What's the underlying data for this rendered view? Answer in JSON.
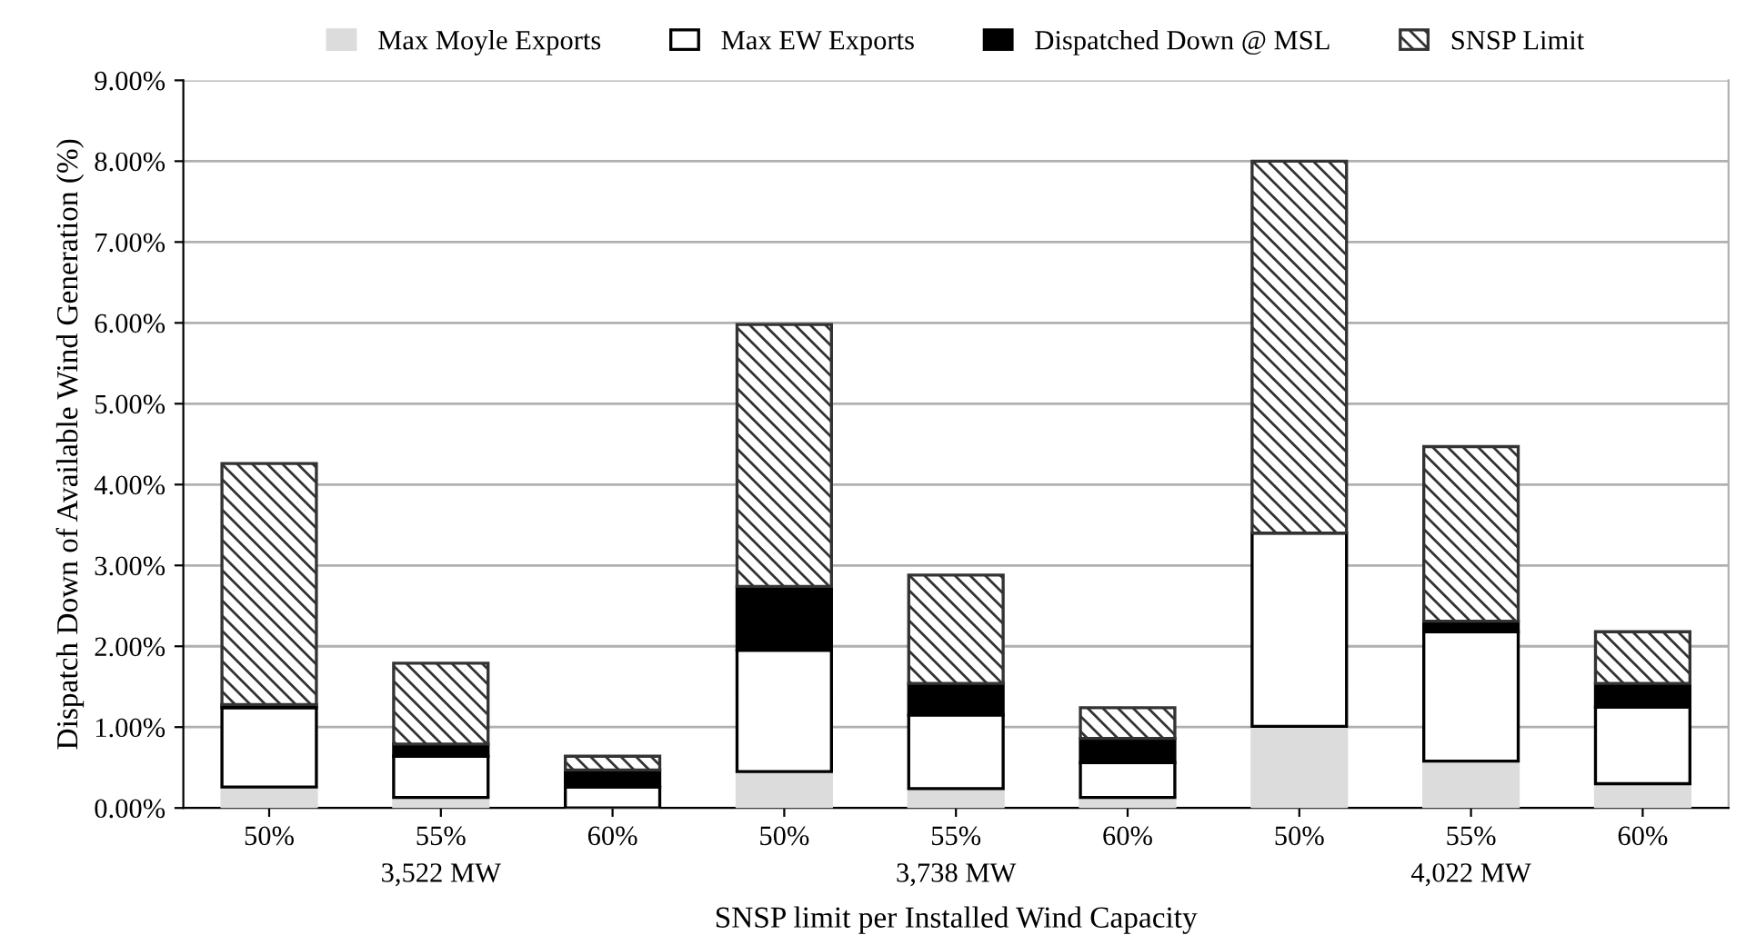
{
  "chart_data": {
    "type": "bar",
    "stacked": true,
    "xlabel": "SNSP limit per Installed Wind Capacity",
    "ylabel": "Dispatch Down of Available Wind Generation (%)",
    "categories": [
      "50%",
      "55%",
      "60%",
      "50%",
      "55%",
      "60%",
      "50%",
      "55%",
      "60%"
    ],
    "series": [
      {
        "name": "Max Moyle Exports",
        "color": "#dcdcdc",
        "values": [
          0.26,
          0.13,
          0,
          0.45,
          0.24,
          0.13,
          1.01,
          0.58,
          0.3
        ]
      },
      {
        "name": "Max EW Exports",
        "color": "#ffffff",
        "values": [
          0.98,
          0.51,
          0.26,
          1.5,
          0.91,
          0.43,
          2.39,
          1.6,
          0.95
        ]
      },
      {
        "name": "Dispatched Down @ MSL",
        "color": "#000000",
        "values": [
          0.04,
          0.15,
          0.21,
          0.79,
          0.39,
          0.3,
          0,
          0.13,
          0.29
        ]
      },
      {
        "name": "SNSP Limit",
        "color": "#333333",
        "values": [
          2.98,
          1.0,
          0.17,
          3.24,
          1.34,
          0.38,
          4.6,
          2.16,
          0.64
        ]
      }
    ],
    "annotations": [
      "3,522 MW",
      "3,738 MW",
      "4,022 MW"
    ],
    "ylim": [
      0,
      9
    ],
    "yticks": [
      {
        "value": 0,
        "label": "0.00%"
      },
      {
        "value": 1,
        "label": "1.00%"
      },
      {
        "value": 2,
        "label": "2.00%"
      },
      {
        "value": 3,
        "label": "3.00%"
      },
      {
        "value": 4,
        "label": "4.00%"
      },
      {
        "value": 5,
        "label": "5.00%"
      },
      {
        "value": 6,
        "label": "6.00%"
      },
      {
        "value": 7,
        "label": "7.00%"
      },
      {
        "value": 8,
        "label": "8.00%"
      },
      {
        "value": 9,
        "label": "9.00%"
      }
    ],
    "grid": "y",
    "legend": "top"
  }
}
